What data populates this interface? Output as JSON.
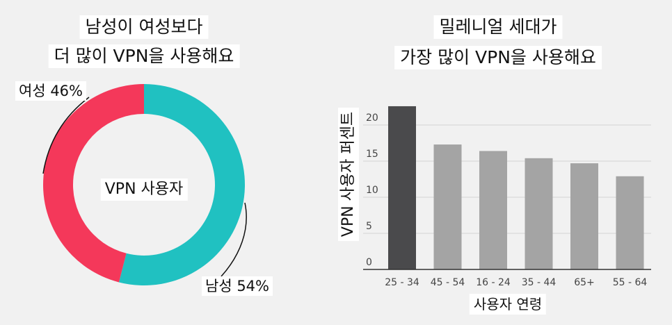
{
  "left": {
    "title_line1": "남성이 여성보다",
    "title_line2": "더 많이 VPN을 사용해요",
    "center_label": "VPN 사용자",
    "female_label": "여성 46%",
    "male_label": "남성 54%"
  },
  "right": {
    "title_line1": "밀레니얼 세대가",
    "title_line2": "가장 많이 VPN을 사용해요"
  },
  "colors": {
    "female": "#f4385a",
    "male": "#20c1c1",
    "bar_highlight": "#4a4a4c",
    "bar": "#a4a4a4",
    "grid": "#d4d4d4"
  },
  "chart_data": [
    {
      "type": "pie",
      "donut": true,
      "title": "남성이 여성보다 더 많이 VPN을 사용해요",
      "center_text": "VPN 사용자",
      "categories": [
        "남성",
        "여성"
      ],
      "values": [
        54,
        46
      ],
      "labels": [
        "남성 54%",
        "여성 46%"
      ]
    },
    {
      "type": "bar",
      "title": "밀레니얼 세대가 가장 많이 VPN을 사용해요",
      "xlabel": "사용자 연령",
      "ylabel": "VPN 사용자 퍼센트",
      "categories": [
        "25 - 34",
        "45 - 54",
        "16 - 24",
        "35 - 44",
        "65+",
        "55 - 64"
      ],
      "values": [
        22.6,
        17.3,
        16.4,
        15.4,
        14.7,
        12.9
      ],
      "highlight_index": 0,
      "ylim": [
        0,
        25
      ],
      "yticks": [
        0,
        5,
        10,
        15,
        20
      ],
      "grid": true
    }
  ]
}
